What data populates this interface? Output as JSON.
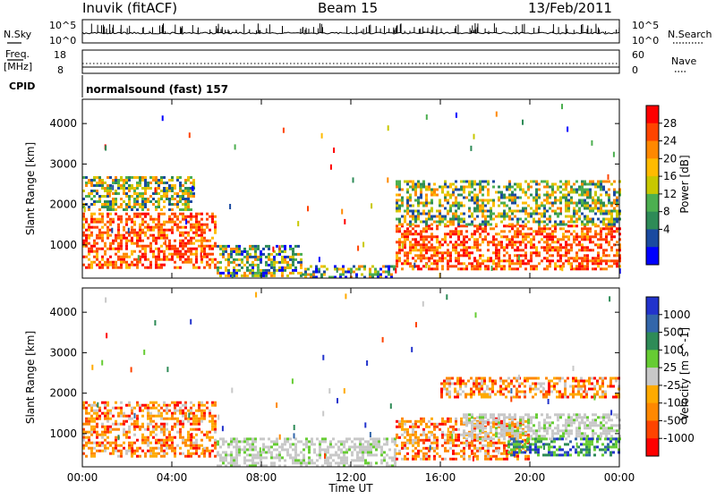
{
  "header": {
    "station": "Inuvik (fitACF)",
    "beam": "Beam 15",
    "date": "13/Feb/2011"
  },
  "noise_panel": {
    "left_label": "N.Sky",
    "right_label": "N.Search",
    "left_ticks": [
      "10^5",
      "10^0"
    ],
    "right_ticks": [
      "10^5",
      "10^0"
    ]
  },
  "freq_panel": {
    "left_label_line1": "Freq.",
    "left_label_line2": "[MHz]",
    "right_label": "Nave",
    "left_ticks": [
      "18",
      "8"
    ],
    "right_ticks": [
      "60",
      "0"
    ]
  },
  "cpid": {
    "label": "CPID",
    "value": "normalsound (fast) 157"
  },
  "x_axis": {
    "label": "Time UT",
    "ticks": [
      "00:00",
      "04:00",
      "08:00",
      "12:00",
      "16:00",
      "20:00",
      "00:00"
    ]
  },
  "chart_data": [
    {
      "type": "heatmap",
      "title": "",
      "xlabel": "Time UT",
      "ylabel": "Slant Range [km]",
      "x_range_hours": [
        0,
        24
      ],
      "ylim": [
        180,
        4600
      ],
      "y_ticks": [
        1000,
        2000,
        3000,
        4000
      ],
      "colorbar": {
        "label": "Power [dB]",
        "ticks": [
          "28",
          "24",
          "20",
          "16",
          "12",
          "8",
          "4"
        ],
        "colors": [
          "#ff0000",
          "#ff4400",
          "#ff8800",
          "#ffbb00",
          "#c8c800",
          "#4caf50",
          "#2e8b57",
          "#1a4aa0",
          "#0000ff"
        ]
      },
      "regions": [
        {
          "t0": 0.0,
          "t1": 6.0,
          "r0": 450,
          "r1": 1800,
          "level": "high"
        },
        {
          "t0": 0.0,
          "t1": 5.0,
          "r0": 1900,
          "r1": 2700,
          "level": "mid"
        },
        {
          "t0": 6.0,
          "t1": 9.8,
          "r0": 250,
          "r1": 1000,
          "level": "low"
        },
        {
          "t0": 9.8,
          "t1": 14.0,
          "r0": 200,
          "r1": 500,
          "level": "low"
        },
        {
          "t0": 14.0,
          "t1": 24.0,
          "r0": 400,
          "r1": 1500,
          "level": "high"
        },
        {
          "t0": 14.0,
          "t1": 24.0,
          "r0": 1500,
          "r1": 2600,
          "level": "mid"
        }
      ]
    },
    {
      "type": "heatmap",
      "title": "",
      "xlabel": "Time UT",
      "ylabel": "Slant Range [km]",
      "x_range_hours": [
        0,
        24
      ],
      "ylim": [
        180,
        4600
      ],
      "y_ticks": [
        1000,
        2000,
        3000,
        4000
      ],
      "colorbar": {
        "label": "Velocity [m s^-1]",
        "ticks": [
          "1000",
          "500",
          "100",
          "25",
          "-25",
          "-100",
          "-500",
          "-1000"
        ],
        "colors": [
          "#2233cc",
          "#3366aa",
          "#2e8b57",
          "#66cc33",
          "#c8c8c8",
          "#ffaa00",
          "#ff8800",
          "#ff4400",
          "#ff0000"
        ]
      },
      "regions": [
        {
          "t0": 0.0,
          "t1": 6.0,
          "r0": 450,
          "r1": 1800,
          "level": "negative"
        },
        {
          "t0": 6.0,
          "t1": 14.0,
          "r0": 200,
          "r1": 900,
          "level": "ground"
        },
        {
          "t0": 14.0,
          "t1": 20.0,
          "r0": 400,
          "r1": 1400,
          "level": "negative"
        },
        {
          "t0": 17.0,
          "t1": 24.0,
          "r0": 900,
          "r1": 1500,
          "level": "ground"
        },
        {
          "t0": 19.0,
          "t1": 24.0,
          "r0": 500,
          "r1": 900,
          "level": "positive"
        },
        {
          "t0": 16.0,
          "t1": 24.0,
          "r0": 1900,
          "r1": 2400,
          "level": "negative"
        }
      ]
    }
  ]
}
